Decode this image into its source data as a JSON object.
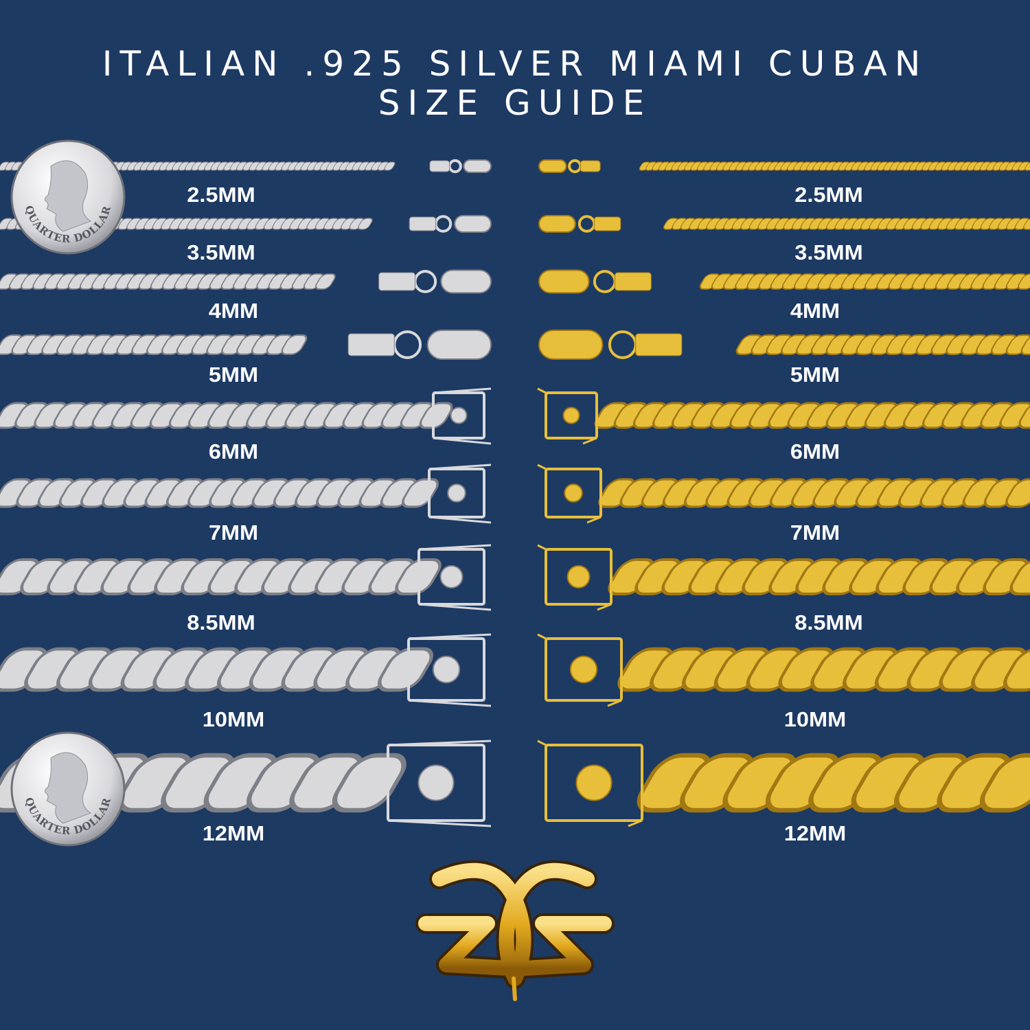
{
  "header": {
    "title_line1": "ITALIAN .925 SILVER MIAMI CUBAN",
    "title_line2": "SIZE GUIDE"
  },
  "colors": {
    "background": "#1d3a63",
    "silver": "#d9d9dc",
    "gold": "#e8bf3a",
    "text": "#ffffff"
  },
  "silver_chains": [
    {
      "size": "2.5MM",
      "clasp": "lobster"
    },
    {
      "size": "3.5MM",
      "clasp": "lobster"
    },
    {
      "size": "4MM",
      "clasp": "lobster"
    },
    {
      "size": "5MM",
      "clasp": "lobster"
    },
    {
      "size": "6MM",
      "clasp": "box"
    },
    {
      "size": "7MM",
      "clasp": "box"
    },
    {
      "size": "8.5MM",
      "clasp": "box"
    },
    {
      "size": "10MM",
      "clasp": "box"
    },
    {
      "size": "12MM",
      "clasp": "box"
    }
  ],
  "gold_chains": [
    {
      "size": "2.5MM",
      "clasp": "lobster"
    },
    {
      "size": "3.5MM",
      "clasp": "lobster"
    },
    {
      "size": "4MM",
      "clasp": "lobster"
    },
    {
      "size": "5MM",
      "clasp": "lobster"
    },
    {
      "size": "6MM",
      "clasp": "box"
    },
    {
      "size": "7MM",
      "clasp": "box"
    },
    {
      "size": "8.5MM",
      "clasp": "box"
    },
    {
      "size": "10MM",
      "clasp": "box"
    },
    {
      "size": "12MM",
      "clasp": "box"
    }
  ],
  "coin": {
    "name": "quarter dollar",
    "icon": "coin-icon"
  },
  "logo": {
    "icon": "gg-gold-logo"
  }
}
